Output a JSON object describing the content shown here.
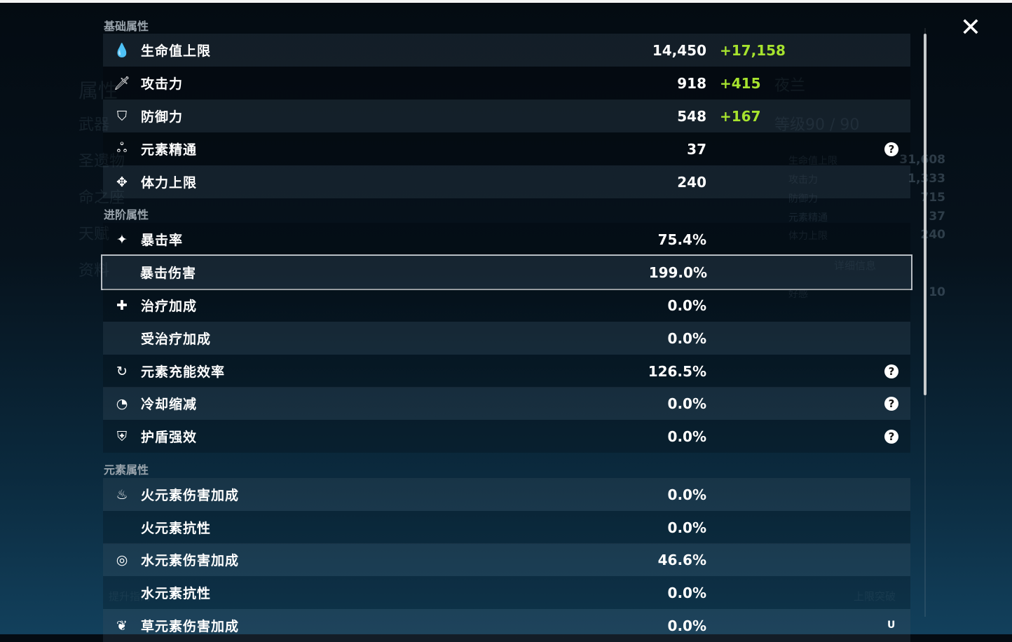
{
  "background": {
    "character_name": "夜兰",
    "level": "等级90 / 90",
    "side_tabs": [
      "属性",
      "武器",
      "圣遗物",
      "命之座",
      "天赋",
      "资料"
    ],
    "summary": [
      {
        "label": "生命值上限",
        "value": "31,608"
      },
      {
        "label": "攻击力",
        "value": "1,333"
      },
      {
        "label": "防御力",
        "value": "715"
      },
      {
        "label": "元素精通",
        "value": "37"
      },
      {
        "label": "体力上限",
        "value": "240"
      }
    ],
    "details_button": "详细信息",
    "friendship": {
      "label": "好感",
      "value": "10"
    },
    "upgrade_button": "提升指南",
    "ascend_button": "上限突破"
  },
  "sections": {
    "base": "基础属性",
    "advanced": "进阶属性",
    "element": "元素属性"
  },
  "stats": {
    "base": [
      {
        "icon": "drop-icon",
        "glyph": "💧",
        "label": "生命值上限",
        "value": "14,450",
        "bonus": "+17,158"
      },
      {
        "icon": "sword-icon",
        "glyph": "🗡",
        "label": "攻击力",
        "value": "918",
        "bonus": "+415"
      },
      {
        "icon": "shield-icon",
        "glyph": "⛉",
        "label": "防御力",
        "value": "548",
        "bonus": "+167"
      },
      {
        "icon": "triple-ring-icon",
        "glyph": "ஃ",
        "label": "元素精通",
        "value": "37",
        "help": "?"
      },
      {
        "icon": "stamina-icon",
        "glyph": "✥",
        "label": "体力上限",
        "value": "240"
      }
    ],
    "advanced": [
      {
        "icon": "crit-star-icon",
        "glyph": "✦",
        "label": "暴击率",
        "value": "75.4%"
      },
      {
        "icon": "",
        "glyph": "",
        "label": "暴击伤害",
        "value": "199.0%"
      },
      {
        "icon": "cross-icon",
        "glyph": "✚",
        "label": "治疗加成",
        "value": "0.0%"
      },
      {
        "icon": "",
        "glyph": "",
        "label": "受治疗加成",
        "value": "0.0%"
      },
      {
        "icon": "recharge-icon",
        "glyph": "↻",
        "label": "元素充能效率",
        "value": "126.5%",
        "help": "?"
      },
      {
        "icon": "cooldown-icon",
        "glyph": "◔",
        "label": "冷却缩减",
        "value": "0.0%",
        "help": "?"
      },
      {
        "icon": "shield-bolt-icon",
        "glyph": "⛨",
        "label": "护盾强效",
        "value": "0.0%",
        "help": "?"
      }
    ],
    "element": [
      {
        "icon": "pyro-icon",
        "glyph": "♨",
        "label": "火元素伤害加成",
        "value": "0.0%"
      },
      {
        "icon": "",
        "glyph": "",
        "label": "火元素抗性",
        "value": "0.0%"
      },
      {
        "icon": "hydro-icon",
        "glyph": "◎",
        "label": "水元素伤害加成",
        "value": "46.6%"
      },
      {
        "icon": "",
        "glyph": "",
        "label": "水元素抗性",
        "value": "0.0%"
      },
      {
        "icon": "dendro-icon",
        "glyph": "❦",
        "label": "草元素伤害加成",
        "value": "0.0%"
      }
    ]
  },
  "close_glyph": "✕",
  "uid_text": "U"
}
